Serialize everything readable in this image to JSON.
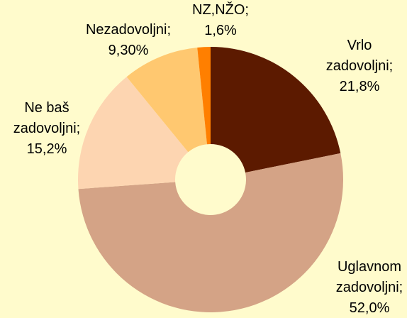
{
  "chart_data": {
    "type": "donut",
    "categories": [
      "Vrlo zadovoljni;",
      "Uglavnom zadovoljni;",
      "Ne baš zadovoljni;",
      "Nezadovoljni;",
      "NZ,NŽO;"
    ],
    "values": [
      21.8,
      52.0,
      15.2,
      9.3,
      1.6
    ],
    "value_labels": [
      "21,8%",
      "52,0%",
      "15,2%",
      "9,30%",
      "1,6%"
    ],
    "colors": [
      "#5c1a00",
      "#d4a386",
      "#fdd5b1",
      "#ffc870",
      "#ff7f00"
    ]
  }
}
